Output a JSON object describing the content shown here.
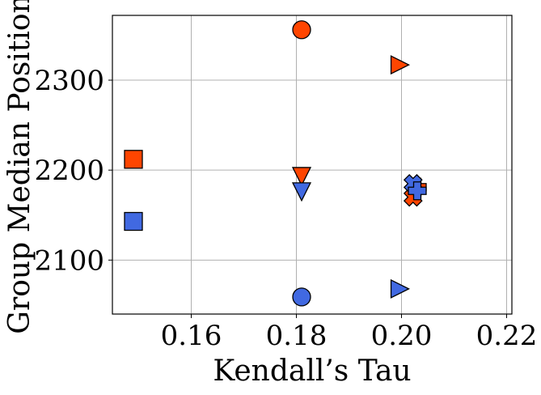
{
  "chart_data": {
    "type": "scatter",
    "xlabel": "Kendall’s Tau",
    "ylabel": "Group Median Position",
    "xlim": [
      0.145,
      0.221
    ],
    "ylim": [
      2040,
      2372
    ],
    "xticks": [
      0.16,
      0.18,
      0.2,
      0.22
    ],
    "xtick_labels": [
      "0.16",
      "0.18",
      "0.20",
      "0.22"
    ],
    "yticks": [
      2100,
      2200,
      2300
    ],
    "ytick_labels": [
      "2100",
      "2200",
      "2300"
    ],
    "grid": true,
    "colors": {
      "orange": "#ff4500",
      "blue": "#4169e1"
    },
    "points": [
      {
        "x": 0.149,
        "y": 2212,
        "marker": "square",
        "color": "orange"
      },
      {
        "x": 0.149,
        "y": 2143,
        "marker": "square",
        "color": "blue"
      },
      {
        "x": 0.181,
        "y": 2356,
        "marker": "circle",
        "color": "orange"
      },
      {
        "x": 0.181,
        "y": 2059,
        "marker": "circle",
        "color": "blue"
      },
      {
        "x": 0.181,
        "y": 2193,
        "marker": "triangle-down",
        "color": "orange"
      },
      {
        "x": 0.181,
        "y": 2176,
        "marker": "triangle-down",
        "color": "blue"
      },
      {
        "x": 0.1997,
        "y": 2317,
        "marker": "triangle-right",
        "color": "orange"
      },
      {
        "x": 0.1997,
        "y": 2068,
        "marker": "triangle-right",
        "color": "blue"
      },
      {
        "x": 0.2022,
        "y": 2170,
        "marker": "x",
        "color": "orange"
      },
      {
        "x": 0.203,
        "y": 2181,
        "marker": "plus",
        "color": "orange"
      },
      {
        "x": 0.2022,
        "y": 2185,
        "marker": "x",
        "color": "blue"
      },
      {
        "x": 0.203,
        "y": 2177,
        "marker": "plus",
        "color": "blue"
      }
    ]
  }
}
